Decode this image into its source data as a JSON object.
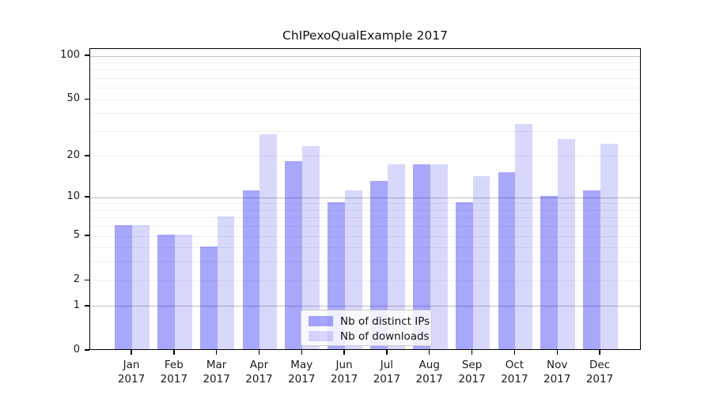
{
  "chart_data": {
    "type": "bar",
    "title": "ChIPexoQualExample 2017",
    "year": "2017",
    "categories": [
      "Jan",
      "Feb",
      "Mar",
      "Apr",
      "May",
      "Jun",
      "Jul",
      "Aug",
      "Sep",
      "Oct",
      "Nov",
      "Dec"
    ],
    "series": [
      {
        "name": "Nb of distinct IPs",
        "color": "rgba(10,10,245,0.36)",
        "color_hex": "#a9a9f6",
        "values": [
          6,
          5,
          4,
          11,
          18,
          9,
          13,
          17,
          9,
          15,
          10,
          11
        ]
      },
      {
        "name": "Nb of downloads",
        "color": "rgba(10,10,245,0.16)",
        "color_hex": "#dadaf9",
        "values": [
          6,
          5,
          7,
          28,
          23,
          11,
          17,
          17,
          14,
          33,
          26,
          24
        ]
      }
    ],
    "xlabel": "",
    "ylabel": "",
    "yscale": "log10(1+v)",
    "ylim": [
      0,
      100
    ],
    "yticks": [
      0,
      1,
      2,
      5,
      10,
      20,
      50,
      100
    ],
    "minor_gridlines": [
      2,
      3,
      4,
      5,
      6,
      7,
      8,
      9,
      20,
      30,
      40,
      50,
      60,
      70,
      80,
      90
    ],
    "major_gridlines": [
      1,
      10,
      100
    ],
    "grid_color_minor": "#efeff2",
    "grid_color_major": "#bdbdc4",
    "legend_position": "inside-bottom-center",
    "legend_labels": [
      "Nb of distinct IPs",
      "Nb of downloads"
    ]
  }
}
